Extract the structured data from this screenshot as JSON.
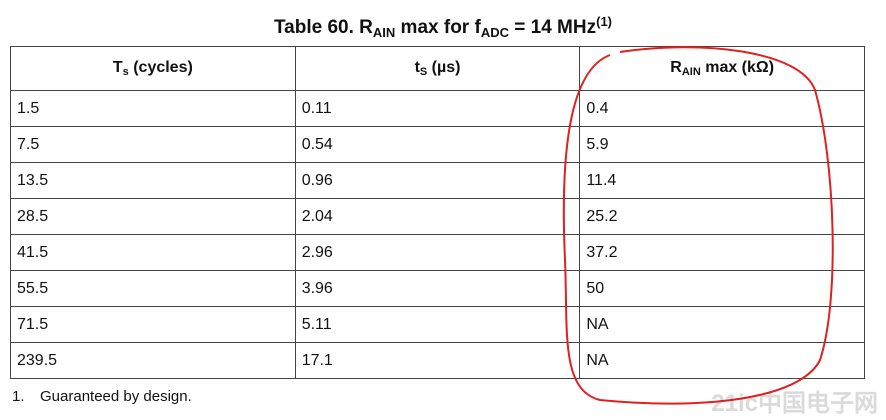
{
  "title": {
    "prefix": "Table 60. R",
    "sub1": "AIN",
    "mid": " max for f",
    "sub2": "ADC",
    "suffix": " = 14 MHz",
    "sup": "(1)"
  },
  "table": {
    "headers": [
      {
        "main": "T",
        "sub": "s",
        "rest": " (cycles)"
      },
      {
        "main": "t",
        "sub": "S",
        "rest": " (µs)"
      },
      {
        "main": "R",
        "sub": "AIN",
        "rest": " max (kΩ)"
      }
    ],
    "rows": [
      [
        "1.5",
        "0.11",
        "0.4"
      ],
      [
        "7.5",
        "0.54",
        "5.9"
      ],
      [
        "13.5",
        "0.96",
        "11.4"
      ],
      [
        "28.5",
        "2.04",
        "25.2"
      ],
      [
        "41.5",
        "2.96",
        "37.2"
      ],
      [
        "55.5",
        "3.96",
        "50"
      ],
      [
        "71.5",
        "5.11",
        "NA"
      ],
      [
        "239.5",
        "17.1",
        "NA"
      ]
    ]
  },
  "footnote": {
    "number": "1.",
    "text": "Guaranteed by design."
  },
  "watermark": "21ic中国电子网"
}
